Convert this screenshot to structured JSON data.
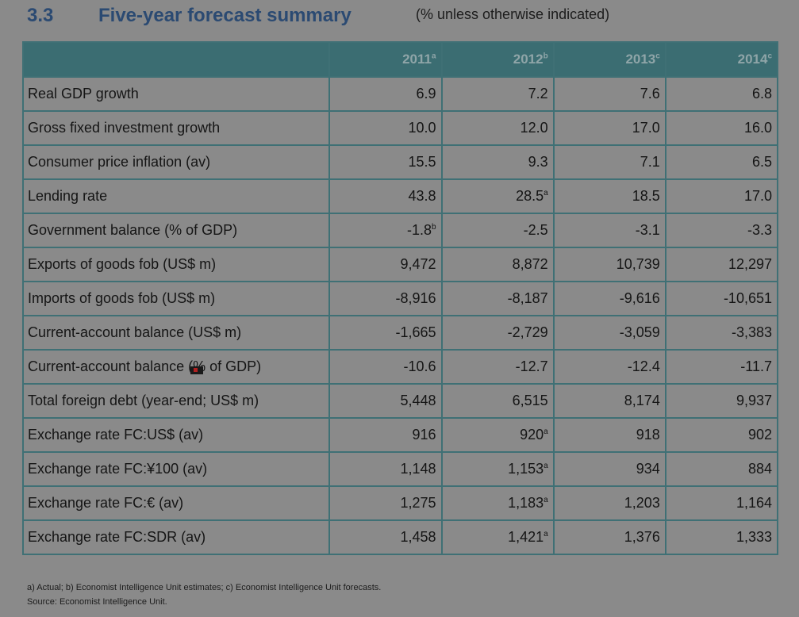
{
  "heading": {
    "number": "3.3",
    "title": "Five-year forecast summary",
    "unit_note": "(% unless otherwise indicated)"
  },
  "table": {
    "columns": [
      {
        "year": "2011",
        "note": "a"
      },
      {
        "year": "2012",
        "note": "b"
      },
      {
        "year": "2013",
        "note": "c"
      },
      {
        "year": "2014",
        "note": "c"
      }
    ],
    "rows": [
      {
        "label": "Real GDP growth",
        "cells": [
          {
            "v": "6.9"
          },
          {
            "v": "7.2"
          },
          {
            "v": "7.6"
          },
          {
            "v": "6.8"
          }
        ]
      },
      {
        "label": "Gross fixed investment growth",
        "cells": [
          {
            "v": "10.0"
          },
          {
            "v": "12.0"
          },
          {
            "v": "17.0"
          },
          {
            "v": "16.0"
          }
        ]
      },
      {
        "label": "Consumer price inflation (av)",
        "cells": [
          {
            "v": "15.5"
          },
          {
            "v": "9.3"
          },
          {
            "v": "7.1"
          },
          {
            "v": "6.5"
          }
        ]
      },
      {
        "label": "Lending rate",
        "cells": [
          {
            "v": "43.8"
          },
          {
            "v": "28.5",
            "n": "a"
          },
          {
            "v": "18.5"
          },
          {
            "v": "17.0"
          }
        ]
      },
      {
        "label": "Government balance (% of GDP)",
        "cells": [
          {
            "v": "-1.8",
            "n": "b"
          },
          {
            "v": "-2.5"
          },
          {
            "v": "-3.1"
          },
          {
            "v": "-3.3"
          }
        ]
      },
      {
        "label": "Exports of goods fob (US$ m)",
        "cells": [
          {
            "v": "9,472"
          },
          {
            "v": "8,872"
          },
          {
            "v": "10,739"
          },
          {
            "v": "12,297"
          }
        ]
      },
      {
        "label": "Imports of goods fob (US$ m)",
        "cells": [
          {
            "v": "-8,916"
          },
          {
            "v": "-8,187"
          },
          {
            "v": "-9,616"
          },
          {
            "v": "-10,651"
          }
        ]
      },
      {
        "label": "Current-account balance (US$ m)",
        "cells": [
          {
            "v": "-1,665"
          },
          {
            "v": "-2,729"
          },
          {
            "v": "-3,059"
          },
          {
            "v": "-3,383"
          }
        ]
      },
      {
        "label": "Current-account balance (% of GDP)",
        "cells": [
          {
            "v": "-10.6"
          },
          {
            "v": "-12.7"
          },
          {
            "v": "-12.4"
          },
          {
            "v": "-11.7"
          }
        ]
      },
      {
        "label": "Total foreign debt (year-end; US$ m)",
        "cells": [
          {
            "v": "5,448"
          },
          {
            "v": "6,515"
          },
          {
            "v": "8,174"
          },
          {
            "v": "9,937"
          }
        ]
      },
      {
        "label": "Exchange rate FC:US$ (av)",
        "cells": [
          {
            "v": "916"
          },
          {
            "v": "920",
            "n": "a"
          },
          {
            "v": "918"
          },
          {
            "v": "902"
          }
        ]
      },
      {
        "label": "Exchange rate FC:¥100 (av)",
        "cells": [
          {
            "v": "1,148"
          },
          {
            "v": "1,153",
            "n": "a"
          },
          {
            "v": "934"
          },
          {
            "v": "884"
          }
        ]
      },
      {
        "label": "Exchange rate FC:€ (av)",
        "cells": [
          {
            "v": "1,275"
          },
          {
            "v": "1,183",
            "n": "a"
          },
          {
            "v": "1,203"
          },
          {
            "v": "1,164"
          }
        ]
      },
      {
        "label": "Exchange rate FC:SDR (av)",
        "cells": [
          {
            "v": "1,458"
          },
          {
            "v": "1,421",
            "n": "a"
          },
          {
            "v": "1,376"
          },
          {
            "v": "1,333"
          }
        ]
      }
    ]
  },
  "footnotes": {
    "notes": "a) Actual;  b) Economist Intelligence Unit estimates;  c) Economist Intelligence Unit forecasts.",
    "source": "Source:  Economist Intelligence Unit."
  }
}
